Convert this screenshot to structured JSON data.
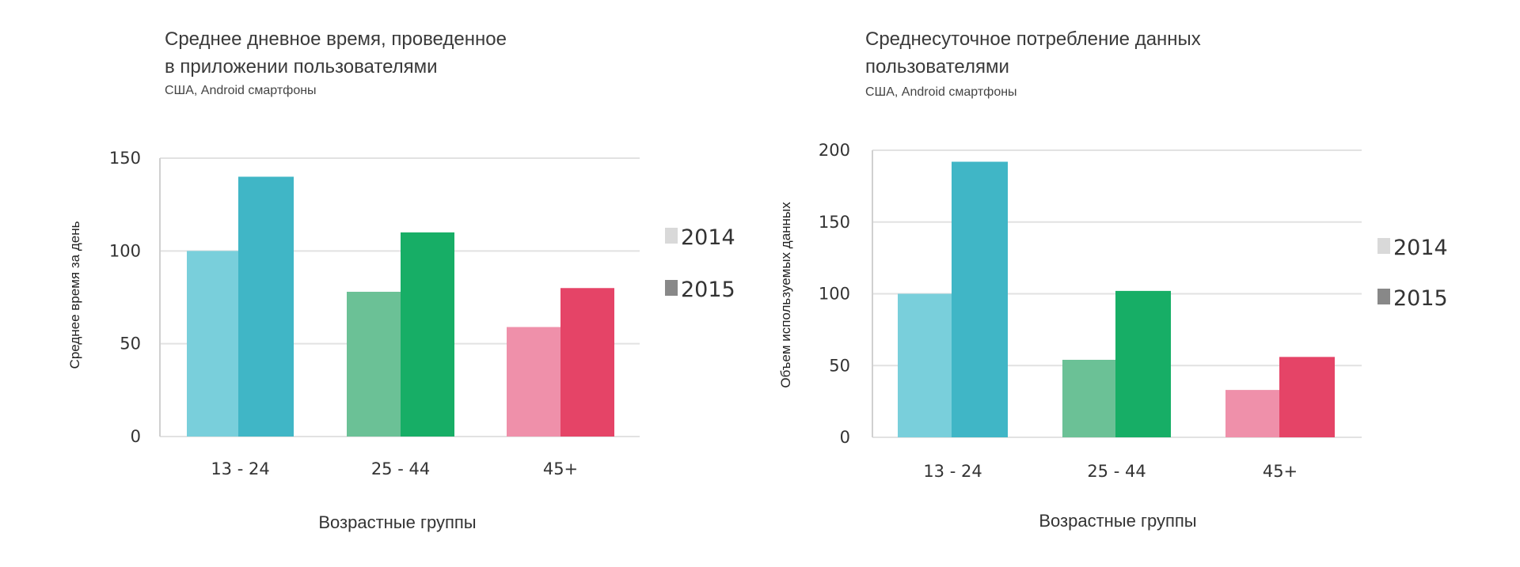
{
  "chart_data": [
    {
      "type": "bar",
      "title": "Среднее дневное время, проведенное в приложении пользователями",
      "title_lines": [
        "Среднее дневное время, проведенное",
        "в приложении пользователями"
      ],
      "subtitle": "США, Android смартфоны",
      "xlabel": "Возрастные группы",
      "ylabel": "Среднее время за день",
      "categories": [
        "13 - 24",
        "25 - 44",
        "45+"
      ],
      "ylim": [
        0,
        150
      ],
      "yticks": [
        0,
        50,
        100,
        150
      ],
      "grid": true,
      "legend_position": "right",
      "legend": [
        {
          "name": "2014",
          "color": "#d9d9d9"
        },
        {
          "name": "2015",
          "color": "#888888"
        }
      ],
      "series": [
        {
          "name": "2014",
          "values": [
            100,
            78,
            59
          ],
          "colors": [
            "#79cfdb",
            "#6bc196",
            "#ef90aa"
          ]
        },
        {
          "name": "2015",
          "values": [
            140,
            110,
            80
          ],
          "colors": [
            "#40b6c6",
            "#17ae66",
            "#e54467"
          ]
        }
      ]
    },
    {
      "type": "bar",
      "title": "Среднесуточное потребление данных пользователями",
      "title_lines": [
        "Среднесуточное потребление данных",
        "пользователями"
      ],
      "subtitle": "США, Android смартфоны",
      "xlabel": "Возрастные группы",
      "ylabel": "Объем используемых данных",
      "categories": [
        "13 - 24",
        "25 - 44",
        "45+"
      ],
      "ylim": [
        0,
        200
      ],
      "yticks": [
        0,
        50,
        100,
        150,
        200
      ],
      "grid": true,
      "legend_position": "right",
      "legend": [
        {
          "name": "2014",
          "color": "#d9d9d9"
        },
        {
          "name": "2015",
          "color": "#888888"
        }
      ],
      "series": [
        {
          "name": "2014",
          "values": [
            100,
            54,
            33
          ],
          "colors": [
            "#79cfdb",
            "#6bc196",
            "#ef90aa"
          ]
        },
        {
          "name": "2015",
          "values": [
            192,
            102,
            56
          ],
          "colors": [
            "#40b6c6",
            "#17ae66",
            "#e54467"
          ]
        }
      ]
    }
  ]
}
